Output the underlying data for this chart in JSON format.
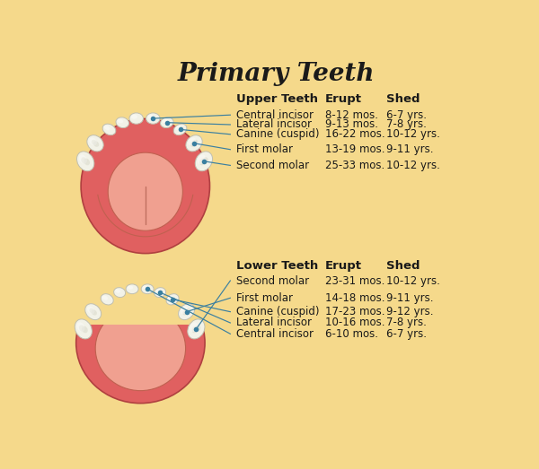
{
  "title": "Primary Teeth",
  "bg_color": "#F5D98B",
  "title_fontsize": 20,
  "title_color": "#1a1a1a",
  "upper_header": [
    "Upper Teeth",
    "Erupt",
    "Shed"
  ],
  "upper_rows": [
    [
      "Central incisor",
      "8-12 mos.",
      "6-7 yrs."
    ],
    [
      "Lateral incisor",
      "9-13 mos.",
      "7-8 yrs."
    ],
    [
      "Canine (cuspid)",
      "16-22 mos.",
      "10-12 yrs."
    ],
    [
      "First molar",
      "13-19 mos.",
      "9-11 yrs."
    ],
    [
      "Second molar",
      "25-33 mos.",
      "10-12 yrs."
    ]
  ],
  "lower_header": [
    "Lower Teeth",
    "Erupt",
    "Shed"
  ],
  "lower_rows": [
    [
      "Second molar",
      "23-31 mos.",
      "10-12 yrs."
    ],
    [
      "First molar",
      "14-18 mos.",
      "9-11 yrs."
    ],
    [
      "Canine (cuspid)",
      "17-23 mos.",
      "9-12 yrs."
    ],
    [
      "Lateral incisor",
      "10-16 mos.",
      "7-8 yrs."
    ],
    [
      "Central incisor",
      "6-10 mos.",
      "6-7 yrs."
    ]
  ],
  "header_bold_color": "#1a1a1a",
  "row_text_color": "#1a1a1a",
  "line_color": "#3a7fa0",
  "dot_color": "#3a7fa0",
  "gum_color": "#E06060",
  "gum_mid_color": "#E88080",
  "gum_inner_color": "#F0A090",
  "tooth_color": "#F2F2E8",
  "tooth_edge": "#C0BFB0",
  "tooth_shadow": "#D8D8C8"
}
